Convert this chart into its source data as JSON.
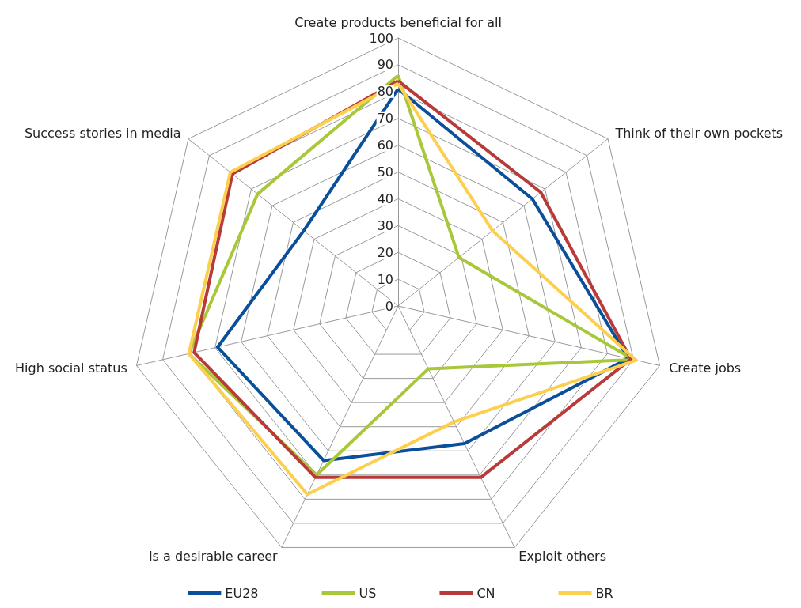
{
  "chart_data": {
    "type": "radar",
    "categories": [
      "Create products beneficial for all",
      "Think of their own pockets",
      "Create jobs",
      "Exploit others",
      "Is a desirable career",
      "High social status",
      "Success stories in media"
    ],
    "ylim": [
      0,
      100
    ],
    "yticks": [
      0,
      10,
      20,
      30,
      40,
      50,
      60,
      70,
      80,
      90,
      100
    ],
    "grid": true,
    "legend": "bottom",
    "marker": "none",
    "line_style": "solid",
    "series": [
      {
        "name": "EU28",
        "color": "#0a4f9a",
        "values": [
          81,
          64,
          88,
          57,
          64,
          69,
          45
        ]
      },
      {
        "name": "US",
        "color": "#a8c83a",
        "values": [
          86,
          29,
          90,
          26,
          70,
          80,
          67
        ]
      },
      {
        "name": "CN",
        "color": "#b83b3a",
        "values": [
          84,
          68,
          89,
          71,
          71,
          78,
          79
        ]
      },
      {
        "name": "BR",
        "color": "#fccf4f",
        "values": [
          83,
          45,
          91,
          48,
          78,
          80,
          80
        ]
      }
    ]
  }
}
